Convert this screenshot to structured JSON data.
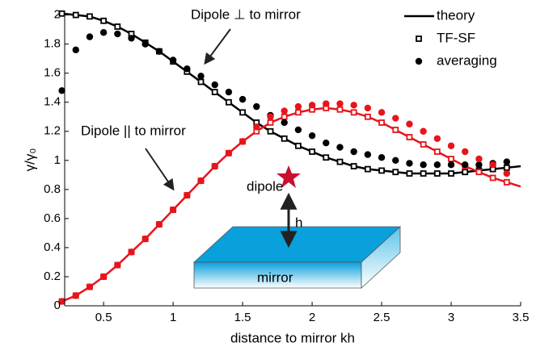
{
  "chart_data": {
    "type": "line",
    "xlabel": "distance to mirror kh",
    "ylabel": "γ/γ₀",
    "xlim": [
      0.22,
      3.5
    ],
    "ylim": [
      0,
      2.02
    ],
    "xticks": [
      0.5,
      1,
      1.5,
      2,
      2.5,
      3,
      3.5
    ],
    "yticks": [
      0,
      0.2,
      0.4,
      0.6,
      0.8,
      1,
      1.2,
      1.4,
      1.6,
      1.8,
      2
    ],
    "legend": "top-right",
    "series": [
      {
        "name": "theory",
        "marker": "line",
        "x": [
          0.2,
          0.3,
          0.4,
          0.5,
          0.6,
          0.7,
          0.8,
          0.9,
          1.0,
          1.1,
          1.2,
          1.3,
          1.4,
          1.5,
          1.6,
          1.7,
          1.8,
          1.9,
          2.0,
          2.1,
          2.2,
          2.3,
          2.4,
          2.5,
          2.6,
          2.7,
          2.8,
          2.9,
          3.0,
          3.1,
          3.2,
          3.3,
          3.4,
          3.5
        ],
        "curves": [
          {
            "color": "#000000",
            "values": [
              2.01,
              2.0,
              1.99,
              1.96,
              1.92,
              1.87,
              1.81,
              1.75,
              1.68,
              1.61,
              1.54,
              1.47,
              1.4,
              1.33,
              1.26,
              1.2,
              1.15,
              1.1,
              1.06,
              1.02,
              0.99,
              0.96,
              0.94,
              0.93,
              0.92,
              0.91,
              0.91,
              0.91,
              0.91,
              0.92,
              0.93,
              0.94,
              0.95,
              0.96
            ]
          },
          {
            "color": "#e8141b",
            "values": [
              0.03,
              0.07,
              0.13,
              0.2,
              0.28,
              0.37,
              0.46,
              0.56,
              0.66,
              0.76,
              0.86,
              0.96,
              1.05,
              1.13,
              1.2,
              1.26,
              1.3,
              1.33,
              1.35,
              1.36,
              1.35,
              1.33,
              1.3,
              1.26,
              1.21,
              1.16,
              1.11,
              1.06,
              1.01,
              0.96,
              0.92,
              0.88,
              0.85,
              0.82
            ]
          }
        ]
      },
      {
        "name": "TF-SF",
        "marker": "square",
        "x": [
          0.2,
          0.3,
          0.4,
          0.5,
          0.6,
          0.7,
          0.8,
          0.9,
          1.0,
          1.1,
          1.2,
          1.3,
          1.4,
          1.5,
          1.6,
          1.7,
          1.8,
          1.9,
          2.0,
          2.1,
          2.2,
          2.3,
          2.4,
          2.5,
          2.6,
          2.7,
          2.8,
          2.9,
          3.0,
          3.1,
          3.2,
          3.3,
          3.4
        ],
        "curves": [
          {
            "color": "#000000",
            "values": [
              2.01,
              2.0,
              1.99,
              1.96,
              1.92,
              1.87,
              1.81,
              1.75,
              1.68,
              1.61,
              1.54,
              1.47,
              1.4,
              1.33,
              1.26,
              1.2,
              1.15,
              1.1,
              1.06,
              1.02,
              0.99,
              0.96,
              0.94,
              0.93,
              0.92,
              0.91,
              0.91,
              0.91,
              0.91,
              0.92,
              0.93,
              0.94,
              0.95
            ]
          },
          {
            "color": "#e8141b",
            "values": [
              0.03,
              0.07,
              0.13,
              0.2,
              0.28,
              0.37,
              0.46,
              0.56,
              0.66,
              0.76,
              0.86,
              0.96,
              1.05,
              1.13,
              1.2,
              1.26,
              1.3,
              1.33,
              1.35,
              1.36,
              1.35,
              1.33,
              1.3,
              1.26,
              1.21,
              1.16,
              1.11,
              1.06,
              1.01,
              0.96,
              0.92,
              0.88,
              0.85
            ]
          }
        ]
      },
      {
        "name": "averaging",
        "marker": "dot",
        "x": [
          0.2,
          0.3,
          0.4,
          0.5,
          0.6,
          0.7,
          0.8,
          0.9,
          1.0,
          1.1,
          1.2,
          1.3,
          1.4,
          1.5,
          1.6,
          1.7,
          1.8,
          1.9,
          2.0,
          2.1,
          2.2,
          2.3,
          2.4,
          2.5,
          2.6,
          2.7,
          2.8,
          2.9,
          3.0,
          3.1,
          3.2,
          3.3,
          3.4
        ],
        "curves": [
          {
            "color": "#000000",
            "values": [
              1.48,
              1.76,
              1.85,
              1.88,
              1.87,
              1.84,
              1.8,
              1.75,
              1.69,
              1.63,
              1.58,
              1.52,
              1.47,
              1.42,
              1.37,
              1.31,
              1.26,
              1.21,
              1.17,
              1.12,
              1.09,
              1.06,
              1.04,
              1.02,
              1.0,
              0.98,
              0.97,
              0.97,
              0.97,
              0.97,
              0.97,
              0.98,
              0.99
            ]
          },
          {
            "color": "#e8141b",
            "values": [
              0.03,
              0.07,
              0.13,
              0.2,
              0.28,
              0.37,
              0.46,
              0.56,
              0.66,
              0.76,
              0.86,
              0.96,
              1.05,
              1.13,
              1.23,
              1.3,
              1.34,
              1.37,
              1.38,
              1.39,
              1.39,
              1.38,
              1.36,
              1.33,
              1.29,
              1.25,
              1.2,
              1.15,
              1.1,
              1.06,
              1.01,
              0.97,
              0.91
            ]
          }
        ]
      }
    ],
    "annotations": {
      "perpendicular": "Dipole ⊥ to mirror",
      "parallel": "Dipole || to mirror",
      "dipole": "dipole",
      "h": "h",
      "mirror": "mirror"
    }
  }
}
